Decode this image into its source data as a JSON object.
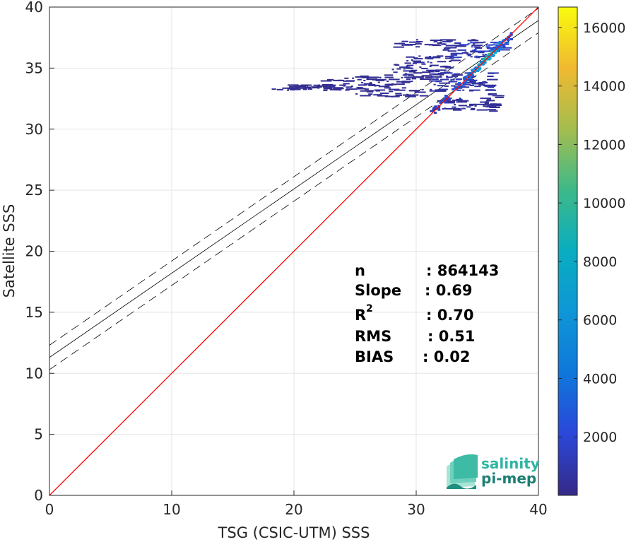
{
  "chart_data": {
    "type": "heatmap",
    "xlabel": "TSG (CSIC-UTM) SSS",
    "ylabel": "Satellite SSS",
    "xlim": [
      0,
      40
    ],
    "ylim": [
      0,
      40
    ],
    "xticks": [
      "0",
      "10",
      "20",
      "30",
      "40"
    ],
    "yticks": [
      "0",
      "5",
      "10",
      "15",
      "20",
      "25",
      "30",
      "35",
      "40"
    ],
    "grid": true,
    "identity_line": {
      "color": "#ff0000",
      "x": [
        0,
        40
      ],
      "y": [
        0,
        40
      ]
    },
    "regression": {
      "slope": 0.69,
      "intercept": 11.3,
      "band_offset": 1.0,
      "color": "#000000"
    },
    "colorbar": {
      "min": 0,
      "max": 16700,
      "ticks": [
        "2000",
        "4000",
        "6000",
        "8000",
        "10000",
        "12000",
        "14000",
        "16000"
      ],
      "colormap": "parula"
    },
    "density_regions": [
      {
        "x0": 17.2,
        "x1": 26.0,
        "y0": 33.1,
        "y1": 33.35,
        "count": 300
      },
      {
        "x0": 19.0,
        "x1": 24.0,
        "y0": 33.2,
        "y1": 33.6,
        "count": 250
      },
      {
        "x0": 22.0,
        "x1": 29.0,
        "y0": 33.3,
        "y1": 34.0,
        "count": 350
      },
      {
        "x0": 24.0,
        "x1": 31.0,
        "y0": 34.0,
        "y1": 34.4,
        "count": 300
      },
      {
        "x0": 25.0,
        "x1": 30.5,
        "y0": 32.6,
        "y1": 33.2,
        "count": 350
      },
      {
        "x0": 28.0,
        "x1": 32.5,
        "y0": 34.4,
        "y1": 35.3,
        "count": 500
      },
      {
        "x0": 29.0,
        "x1": 33.0,
        "y0": 35.3,
        "y1": 36.0,
        "count": 600
      },
      {
        "x0": 31.0,
        "x1": 36.0,
        "y0": 33.0,
        "y1": 34.6,
        "count": 900
      },
      {
        "x0": 32.0,
        "x1": 36.5,
        "y0": 35.8,
        "y1": 36.6,
        "count": 1200
      },
      {
        "x0": 33.0,
        "x1": 37.0,
        "y0": 36.3,
        "y1": 37.1,
        "count": 1800
      },
      {
        "x0": 35.5,
        "x1": 36.5,
        "y0": 31.3,
        "y1": 33.0,
        "count": 400
      },
      {
        "x0": 31.5,
        "x1": 36.0,
        "y0": 31.5,
        "y1": 32.5,
        "count": 500
      },
      {
        "x0": 28.0,
        "x1": 35.0,
        "y0": 36.6,
        "y1": 37.3,
        "count": 450
      }
    ],
    "diagonal_cluster": [
      {
        "x": 31.5,
        "y": 31.6,
        "count": 1500
      },
      {
        "x": 32.5,
        "y": 32.6,
        "count": 2200
      },
      {
        "x": 33.5,
        "y": 33.6,
        "count": 3000
      },
      {
        "x": 34.2,
        "y": 34.3,
        "count": 4200
      },
      {
        "x": 34.8,
        "y": 34.9,
        "count": 5800
      },
      {
        "x": 35.3,
        "y": 35.4,
        "count": 7600
      },
      {
        "x": 35.7,
        "y": 35.8,
        "count": 9000
      },
      {
        "x": 36.1,
        "y": 36.2,
        "count": 8000
      },
      {
        "x": 36.5,
        "y": 36.6,
        "count": 6500
      },
      {
        "x": 36.9,
        "y": 36.9,
        "count": 4200
      },
      {
        "x": 37.3,
        "y": 37.2,
        "count": 2500
      }
    ],
    "stats": [
      {
        "label": "n",
        "value": ": 864143"
      },
      {
        "label": "Slope",
        "value": ": 0.69"
      },
      {
        "label": "R",
        "sup": "2",
        "value": ": 0.70"
      },
      {
        "label": "RMS",
        "value": ": 0.51"
      },
      {
        "label": "BIAS",
        "value": ": 0.02"
      }
    ]
  },
  "logo": {
    "line1": "salinity",
    "line2": "pi-mep"
  }
}
